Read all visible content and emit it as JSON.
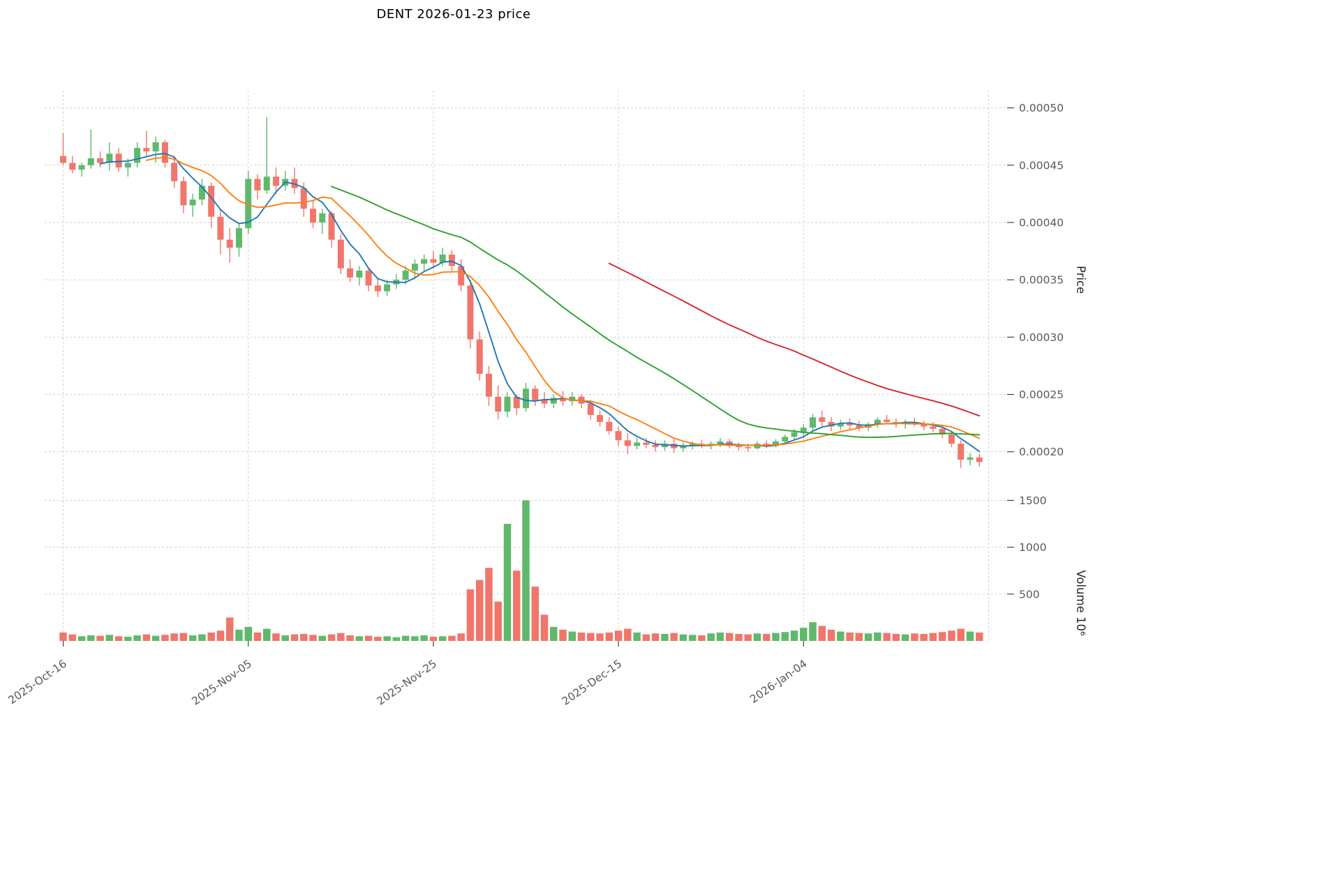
{
  "chart_data": {
    "type": "candlestick",
    "title": "DENT  2026-01-23  price",
    "symbol": "DENT",
    "date_shown": "2026-01-23",
    "grid": true,
    "x_axis": {
      "tick_indices": [
        0,
        20,
        40,
        60,
        80,
        100
      ],
      "tick_labels": [
        "2025-Oct-16",
        "2025-Nov-05",
        "2025-Nov-25",
        "2025-Dec-15",
        "2026-Jan-04",
        ""
      ]
    },
    "price_axis": {
      "label": "Price",
      "ticks": [
        0.0002,
        0.00025,
        0.0003,
        0.00035,
        0.0004,
        0.00045,
        0.0005
      ],
      "min": 0.00017,
      "max": 0.000515
    },
    "volume_axis": {
      "label": "Volume  10⁶",
      "ticks": [
        500,
        1000,
        1500
      ],
      "min": 0,
      "max": 1630
    },
    "colors": {
      "up": "#5fb96b",
      "down": "#f0766b",
      "grid": "#cccccc",
      "tick_text": "#595959",
      "axis_label": "#262626",
      "tick_mark": "#333333"
    },
    "moving_averages": [
      {
        "name": "ma-short",
        "window": 5,
        "color": "#1f77b4"
      },
      {
        "name": "ma-medium",
        "window": 10,
        "color": "#ff7f0e"
      },
      {
        "name": "ma-long",
        "window": 30,
        "color": "#2ca02c"
      },
      {
        "name": "ma-longest",
        "window": 60,
        "color": "#d62728"
      }
    ],
    "series": {
      "open": [
        0.000458,
        0.000452,
        0.000446,
        0.00045,
        0.000456,
        0.000452,
        0.00046,
        0.000448,
        0.000452,
        0.000465,
        0.000462,
        0.00047,
        0.000452,
        0.000436,
        0.000415,
        0.00042,
        0.000432,
        0.000405,
        0.000385,
        0.000378,
        0.000395,
        0.000438,
        0.000428,
        0.00044,
        0.000432,
        0.000438,
        0.00043,
        0.000412,
        0.0004,
        0.000408,
        0.000385,
        0.00036,
        0.000352,
        0.000358,
        0.000345,
        0.00034,
        0.000346,
        0.00035,
        0.000358,
        0.000364,
        0.000368,
        0.000365,
        0.000372,
        0.000362,
        0.000345,
        0.000298,
        0.000268,
        0.000248,
        0.000235,
        0.000248,
        0.000238,
        0.000255,
        0.000245,
        0.000242,
        0.000247,
        0.000244,
        0.000248,
        0.000242,
        0.000232,
        0.000226,
        0.000218,
        0.00021,
        0.000205,
        0.000208,
        0.000206,
        0.000204,
        0.000207,
        0.000203,
        0.000205,
        0.000207,
        0.000205,
        0.000207,
        0.000209,
        0.000205,
        0.000204,
        0.000203,
        0.000207,
        0.000205,
        0.000209,
        0.000213,
        0.000217,
        0.000221,
        0.00023,
        0.000226,
        0.000222,
        0.000225,
        0.000223,
        0.000221,
        0.000224,
        0.000228,
        0.000226,
        0.000224,
        0.000226,
        0.000224,
        0.000222,
        0.00022,
        0.000215,
        0.000207,
        0.000193,
        0.000195
      ],
      "high": [
        0.000478,
        0.000458,
        0.000452,
        0.000481,
        0.000462,
        0.00047,
        0.000465,
        0.000456,
        0.00047,
        0.00048,
        0.000475,
        0.000472,
        0.000458,
        0.00044,
        0.000425,
        0.000438,
        0.000435,
        0.000412,
        0.000395,
        0.0004,
        0.000445,
        0.000442,
        0.000492,
        0.000448,
        0.000445,
        0.000448,
        0.000435,
        0.00042,
        0.000412,
        0.00041,
        0.00039,
        0.000368,
        0.000362,
        0.00036,
        0.000352,
        0.00035,
        0.000355,
        0.000362,
        0.000368,
        0.000372,
        0.000375,
        0.000378,
        0.000376,
        0.000368,
        0.00035,
        0.000305,
        0.000275,
        0.000258,
        0.000252,
        0.00025,
        0.00026,
        0.000258,
        0.000252,
        0.00025,
        0.000253,
        0.000252,
        0.00025,
        0.000245,
        0.000236,
        0.00023,
        0.000222,
        0.000216,
        0.000212,
        0.000212,
        0.00021,
        0.00021,
        0.000211,
        0.000208,
        0.000209,
        0.00021,
        0.000209,
        0.000212,
        0.000211,
        0.000208,
        0.000207,
        0.000209,
        0.00021,
        0.000211,
        0.000215,
        0.00022,
        0.000224,
        0.000233,
        0.000236,
        0.00023,
        0.000228,
        0.000229,
        0.000227,
        0.000226,
        0.00023,
        0.000232,
        0.000229,
        0.000228,
        0.00023,
        0.000227,
        0.000226,
        0.000223,
        0.000218,
        0.00021,
        0.000199,
        0.000198
      ],
      "low": [
        0.00045,
        0.000443,
        0.00044,
        0.000447,
        0.000448,
        0.000445,
        0.000444,
        0.00044,
        0.000448,
        0.000458,
        0.000452,
        0.000448,
        0.00043,
        0.000408,
        0.000405,
        0.000415,
        0.000395,
        0.000372,
        0.000365,
        0.00037,
        0.00039,
        0.00042,
        0.000425,
        0.000425,
        0.000428,
        0.000425,
        0.000405,
        0.000395,
        0.00039,
        0.000378,
        0.000355,
        0.000348,
        0.000345,
        0.00034,
        0.000335,
        0.000336,
        0.000342,
        0.000346,
        0.000352,
        0.000358,
        0.00036,
        0.000362,
        0.000358,
        0.00034,
        0.00029,
        0.000262,
        0.00024,
        0.000228,
        0.00023,
        0.000232,
        0.000235,
        0.00024,
        0.000238,
        0.000238,
        0.00024,
        0.00024,
        0.000238,
        0.000228,
        0.000222,
        0.000215,
        0.000205,
        0.000198,
        0.000202,
        0.000203,
        0.0002,
        0.000201,
        0.000199,
        0.0002,
        0.000202,
        0.000203,
        0.000202,
        0.000204,
        0.000203,
        0.000201,
        0.0002,
        0.000202,
        0.000203,
        0.000204,
        0.000207,
        0.00021,
        0.000214,
        0.000218,
        0.000222,
        0.000218,
        0.000219,
        0.00022,
        0.000218,
        0.000218,
        0.000221,
        0.000224,
        0.000221,
        0.00022,
        0.000222,
        0.000219,
        0.000217,
        0.000212,
        0.000204,
        0.000186,
        0.000188,
        0.000187
      ],
      "close": [
        0.000452,
        0.000446,
        0.00045,
        0.000456,
        0.000452,
        0.00046,
        0.000448,
        0.000452,
        0.000465,
        0.000462,
        0.00047,
        0.000452,
        0.000436,
        0.000415,
        0.00042,
        0.000432,
        0.000405,
        0.000385,
        0.000378,
        0.000395,
        0.000438,
        0.000428,
        0.00044,
        0.000432,
        0.000438,
        0.00043,
        0.000412,
        0.0004,
        0.000408,
        0.000385,
        0.00036,
        0.000352,
        0.000358,
        0.000345,
        0.00034,
        0.000346,
        0.00035,
        0.000358,
        0.000364,
        0.000368,
        0.000365,
        0.000372,
        0.000362,
        0.000345,
        0.000298,
        0.000268,
        0.000248,
        0.000235,
        0.000248,
        0.000238,
        0.000255,
        0.000245,
        0.000242,
        0.000247,
        0.000244,
        0.000248,
        0.000242,
        0.000232,
        0.000226,
        0.000218,
        0.00021,
        0.000205,
        0.000208,
        0.000206,
        0.000204,
        0.000207,
        0.000203,
        0.000205,
        0.000207,
        0.000205,
        0.000207,
        0.000209,
        0.000205,
        0.000204,
        0.000203,
        0.000207,
        0.000205,
        0.000209,
        0.000213,
        0.000217,
        0.000221,
        0.00023,
        0.000226,
        0.000222,
        0.000225,
        0.000223,
        0.000221,
        0.000224,
        0.000228,
        0.000226,
        0.000224,
        0.000226,
        0.000224,
        0.000222,
        0.00022,
        0.000215,
        0.000207,
        0.000193,
        0.000195,
        0.000191
      ],
      "volume": [
        90,
        70,
        50,
        60,
        55,
        65,
        50,
        45,
        60,
        70,
        55,
        65,
        80,
        85,
        60,
        70,
        90,
        110,
        250,
        120,
        150,
        90,
        130,
        80,
        60,
        70,
        75,
        65,
        55,
        70,
        85,
        60,
        50,
        55,
        45,
        50,
        40,
        55,
        50,
        60,
        45,
        50,
        55,
        80,
        550,
        650,
        780,
        420,
        1250,
        750,
        1500,
        580,
        280,
        150,
        120,
        100,
        90,
        85,
        80,
        90,
        110,
        130,
        90,
        70,
        80,
        75,
        85,
        70,
        65,
        60,
        80,
        90,
        85,
        75,
        70,
        80,
        75,
        85,
        95,
        110,
        140,
        200,
        160,
        120,
        100,
        90,
        85,
        80,
        90,
        85,
        75,
        70,
        80,
        75,
        85,
        95,
        110,
        130,
        100,
        90
      ]
    }
  }
}
